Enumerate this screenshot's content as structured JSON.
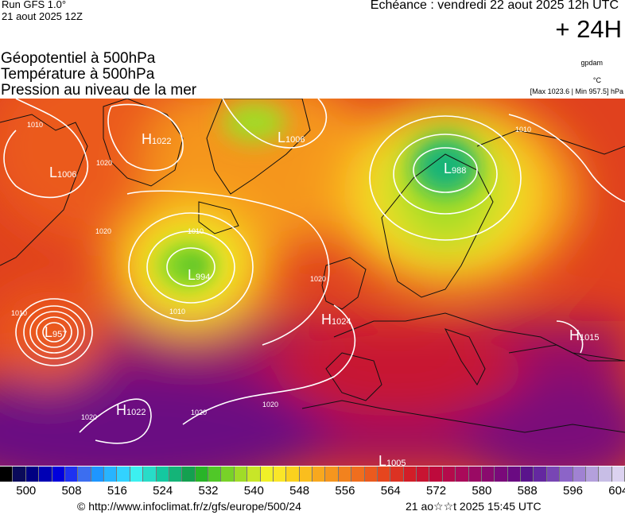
{
  "header": {
    "run": "Run GFS 1.0°",
    "run_time": "21 aout 2025 12Z",
    "echeance": "Echéance : vendredi 22 aout 2025 12h UTC",
    "hours": "+ 24H",
    "fields": [
      "Géopotentiel à 500hPa",
      "Température à 500hPa",
      "Pression au niveau de la mer"
    ],
    "unit_gpdam": "gpdam",
    "unit_temp": "°C",
    "pressure_extremes": "[Max 1023.6 | Min 957.5] hPa"
  },
  "pressure_centers": [
    {
      "type": "L",
      "value": "1006",
      "name": "low-east-canada"
    },
    {
      "type": "H",
      "value": "1022",
      "name": "high-baffin"
    },
    {
      "type": "L",
      "value": "1006",
      "name": "low-greenland"
    },
    {
      "type": "L",
      "value": "988",
      "name": "low-scandinavia"
    },
    {
      "type": "L",
      "value": "994",
      "name": "low-north-atlantic"
    },
    {
      "type": "L",
      "value": "957",
      "name": "low-newfoundland"
    },
    {
      "type": "H",
      "value": "1024",
      "name": "high-biscay"
    },
    {
      "type": "H",
      "value": "1015",
      "name": "high-turkey"
    },
    {
      "type": "H",
      "value": "1022",
      "name": "high-azores"
    },
    {
      "type": "L",
      "value": "1005",
      "name": "low-sahara"
    }
  ],
  "isobar_labels": [
    "1010",
    "1020",
    "1010",
    "1010",
    "1010",
    "1010",
    "1020",
    "1020",
    "1020",
    "1020",
    "1020"
  ],
  "scale": {
    "colors": [
      "#000000",
      "#0a0a5a",
      "#000082",
      "#0000b4",
      "#0000dc",
      "#1e32f0",
      "#3c6ef0",
      "#1e96ff",
      "#28b4ff",
      "#32d2ff",
      "#3cf0f0",
      "#28dcc8",
      "#14c8a0",
      "#14b478",
      "#14a050",
      "#28b428",
      "#50c828",
      "#78d228",
      "#a0dc28",
      "#c8e628",
      "#f0f028",
      "#fae628",
      "#fad21e",
      "#fabe1e",
      "#f8a81e",
      "#f5961e",
      "#f2821e",
      "#f06e1e",
      "#eb5a1e",
      "#e6461e",
      "#dc3223",
      "#d21e28",
      "#c81432",
      "#be0a3c",
      "#b40a4b",
      "#aa0a5a",
      "#9a0a64",
      "#8a0a6e",
      "#7a0a7a",
      "#6a0a82",
      "#5a148c",
      "#6428a0",
      "#7846b4",
      "#8c64c8",
      "#a082d2",
      "#b4a0dc",
      "#c8bee6",
      "#dcd2f0"
    ],
    "tick_values": [
      "500",
      "508",
      "516",
      "524",
      "532",
      "540",
      "548",
      "556",
      "564",
      "572",
      "580",
      "588",
      "596",
      "604"
    ]
  },
  "footer": {
    "copyright": "© http://www.infoclimat.fr/z/gfs/europe/500/24",
    "stamp": "21 ao☆☆t 2025 15:45 UTC"
  }
}
